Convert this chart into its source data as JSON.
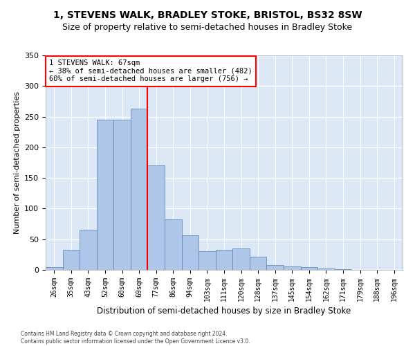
{
  "title1": "1, STEVENS WALK, BRADLEY STOKE, BRISTOL, BS32 8SW",
  "title2": "Size of property relative to semi-detached houses in Bradley Stoke",
  "xlabel": "Distribution of semi-detached houses by size in Bradley Stoke",
  "ylabel": "Number of semi-detached properties",
  "footnote": "Contains HM Land Registry data © Crown copyright and database right 2024.\nContains public sector information licensed under the Open Government Licence v3.0.",
  "bar_labels": [
    "26sqm",
    "35sqm",
    "43sqm",
    "52sqm",
    "60sqm",
    "69sqm",
    "77sqm",
    "86sqm",
    "94sqm",
    "103sqm",
    "111sqm",
    "120sqm",
    "128sqm",
    "137sqm",
    "145sqm",
    "154sqm",
    "162sqm",
    "171sqm",
    "179sqm",
    "188sqm",
    "196sqm"
  ],
  "bar_values": [
    5,
    33,
    65,
    245,
    245,
    263,
    170,
    82,
    57,
    30,
    33,
    35,
    21,
    8,
    6,
    5,
    2,
    1,
    0,
    0,
    0
  ],
  "bar_color": "#aec6e8",
  "bar_edge_color": "#5080b0",
  "annotation_text": "1 STEVENS WALK: 67sqm\n← 38% of semi-detached houses are smaller (482)\n60% of semi-detached houses are larger (756) →",
  "annotation_box_color": "white",
  "annotation_box_edge_color": "red",
  "vline_color": "red",
  "vline_x": 5.5,
  "ylim": [
    0,
    350
  ],
  "yticks": [
    0,
    50,
    100,
    150,
    200,
    250,
    300,
    350
  ],
  "bg_color": "#dce8f5",
  "grid_color": "white",
  "title1_fontsize": 10,
  "title2_fontsize": 9,
  "xlabel_fontsize": 8.5,
  "ylabel_fontsize": 8,
  "tick_fontsize": 7,
  "annot_fontsize": 7.5
}
